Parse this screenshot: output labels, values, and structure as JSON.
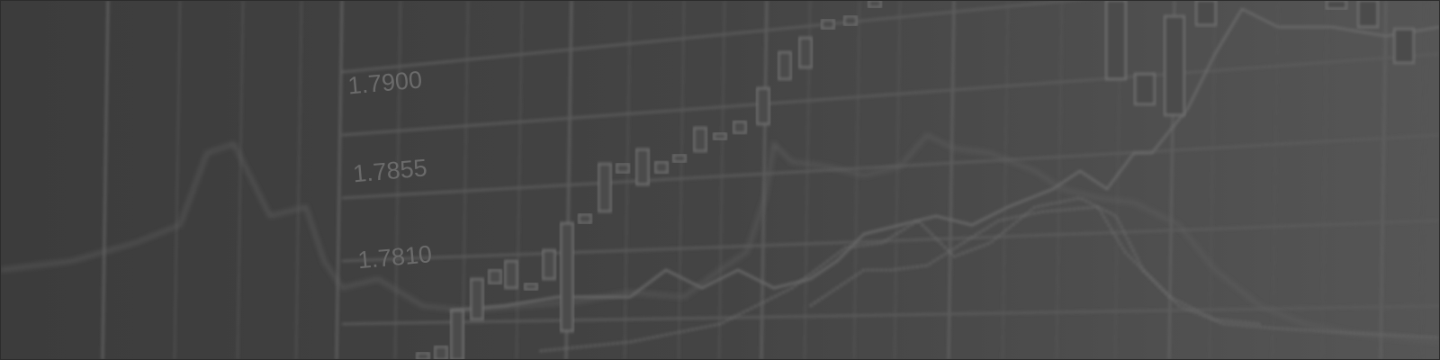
{
  "axis_labels": [
    "1.7900",
    "1.7855",
    "1.7810"
  ]
}
